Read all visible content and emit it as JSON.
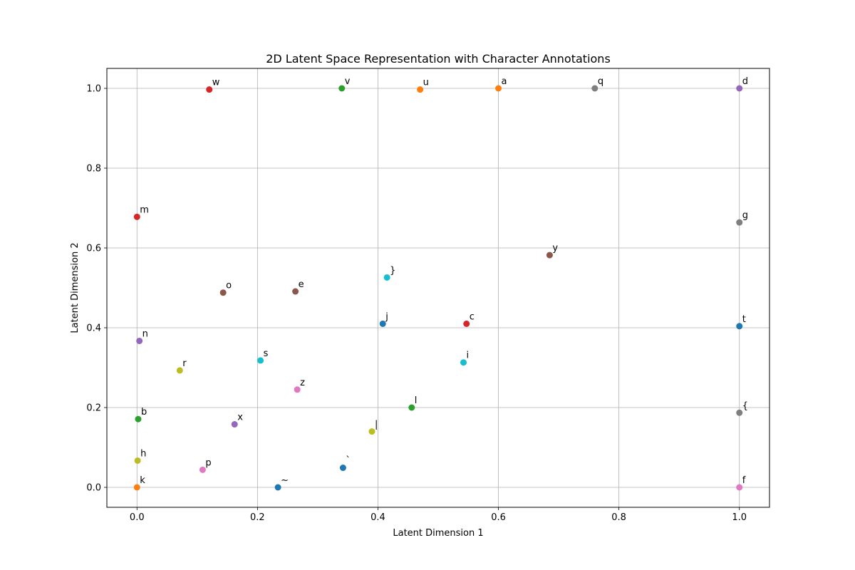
{
  "chart_data": {
    "type": "scatter",
    "title": "2D Latent Space Representation with Character Annotations",
    "xlabel": "Latent Dimension 1",
    "ylabel": "Latent Dimension 2",
    "xlim": [
      -0.05,
      1.05
    ],
    "ylim": [
      -0.05,
      1.05
    ],
    "xticks": [
      "0.0",
      "0.2",
      "0.4",
      "0.6",
      "0.8",
      "1.0"
    ],
    "yticks": [
      "0.0",
      "0.2",
      "0.4",
      "0.6",
      "0.8",
      "1.0"
    ],
    "grid": true,
    "points": [
      {
        "label": "w",
        "x": 0.12,
        "y": 0.997,
        "color": "#d62728"
      },
      {
        "label": "v",
        "x": 0.34,
        "y": 1.0,
        "color": "#2ca02c"
      },
      {
        "label": "u",
        "x": 0.47,
        "y": 0.997,
        "color": "#ff7f0e"
      },
      {
        "label": "a",
        "x": 0.6,
        "y": 1.0,
        "color": "#ff7f0e"
      },
      {
        "label": "q",
        "x": 0.76,
        "y": 1.0,
        "color": "#7f7f7f"
      },
      {
        "label": "d",
        "x": 1.0,
        "y": 1.0,
        "color": "#9467bd"
      },
      {
        "label": "m",
        "x": 0.0,
        "y": 0.678,
        "color": "#d62728"
      },
      {
        "label": "g",
        "x": 1.0,
        "y": 0.664,
        "color": "#7f7f7f"
      },
      {
        "label": "y",
        "x": 0.685,
        "y": 0.582,
        "color": "#8c564b"
      },
      {
        "label": "}",
        "x": 0.415,
        "y": 0.526,
        "color": "#17becf"
      },
      {
        "label": "o",
        "x": 0.143,
        "y": 0.488,
        "color": "#8c564b"
      },
      {
        "label": "e",
        "x": 0.263,
        "y": 0.491,
        "color": "#8c564b"
      },
      {
        "label": "j",
        "x": 0.408,
        "y": 0.41,
        "color": "#1f77b4"
      },
      {
        "label": "c",
        "x": 0.547,
        "y": 0.41,
        "color": "#d62728"
      },
      {
        "label": "t",
        "x": 1.0,
        "y": 0.404,
        "color": "#1f77b4"
      },
      {
        "label": "n",
        "x": 0.004,
        "y": 0.367,
        "color": "#9467bd"
      },
      {
        "label": "s",
        "x": 0.205,
        "y": 0.318,
        "color": "#17becf"
      },
      {
        "label": "i",
        "x": 0.542,
        "y": 0.313,
        "color": "#17becf"
      },
      {
        "label": "r",
        "x": 0.071,
        "y": 0.293,
        "color": "#bcbd22"
      },
      {
        "label": "z",
        "x": 0.266,
        "y": 0.245,
        "color": "#e377c2"
      },
      {
        "label": "l",
        "x": 0.456,
        "y": 0.2,
        "color": "#2ca02c"
      },
      {
        "label": "{",
        "x": 1.0,
        "y": 0.187,
        "color": "#7f7f7f"
      },
      {
        "label": "b",
        "x": 0.002,
        "y": 0.171,
        "color": "#2ca02c"
      },
      {
        "label": "x",
        "x": 0.162,
        "y": 0.158,
        "color": "#9467bd"
      },
      {
        "label": "|",
        "x": 0.39,
        "y": 0.14,
        "color": "#bcbd22"
      },
      {
        "label": "h",
        "x": 0.001,
        "y": 0.067,
        "color": "#bcbd22"
      },
      {
        "label": "`",
        "x": 0.342,
        "y": 0.049,
        "color": "#1f77b4"
      },
      {
        "label": "p",
        "x": 0.109,
        "y": 0.044,
        "color": "#e377c2"
      },
      {
        "label": "k",
        "x": 0.0,
        "y": 0.0,
        "color": "#ff7f0e"
      },
      {
        "label": "~",
        "x": 0.234,
        "y": 0.0,
        "color": "#1f77b4"
      },
      {
        "label": "f",
        "x": 1.0,
        "y": 0.0,
        "color": "#e377c2"
      }
    ]
  }
}
